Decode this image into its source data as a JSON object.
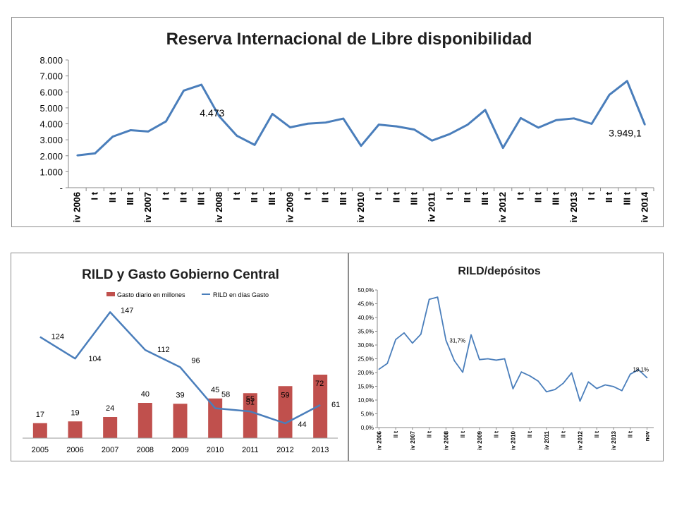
{
  "chart_data": [
    {
      "type": "line",
      "title": "Reserva Internacional de Libre disponibilidad",
      "xlabel": "",
      "ylabel": "",
      "ylim": [
        0,
        8000
      ],
      "yticks": [
        "-",
        "1.000",
        "2.000",
        "3.000",
        "4.000",
        "5.000",
        "6.000",
        "7.000",
        "8.000"
      ],
      "categories": [
        "iv 2006",
        "I t",
        "II t",
        "III t",
        "iv 2007",
        "I t",
        "II t",
        "III t",
        "iv 2008",
        "I t",
        "II t",
        "III t",
        "iv 2009",
        "I t",
        "II t",
        "III t",
        "iv 2010",
        "I t",
        "II t",
        "III t",
        "iv 2011",
        "I t",
        "II t",
        "III t",
        "iv 2012",
        "I t",
        "II t",
        "III t",
        "iv 2013",
        "I t",
        "II t",
        "III t",
        "iv 2014"
      ],
      "series": [
        {
          "color": "#4a7ebb",
          "values": [
            2020,
            2150,
            3200,
            3600,
            3520,
            4150,
            6080,
            6450,
            4473,
            3250,
            2680,
            4620,
            3780,
            4010,
            4080,
            4330,
            2620,
            3950,
            3840,
            3640,
            2950,
            3360,
            3940,
            4870,
            2490,
            4360,
            3760,
            4230,
            4340,
            4000,
            5820,
            6680,
            3949.1
          ]
        }
      ],
      "annotations": [
        {
          "label": "4.473",
          "index": 8
        },
        {
          "label": "3.949,1",
          "index": 32
        }
      ],
      "grid": false,
      "legend": "none"
    },
    {
      "type": "bar",
      "title": "RILD y Gasto Gobierno Central",
      "xlabel": "",
      "ylabel": "",
      "categories": [
        "2005",
        "2006",
        "2007",
        "2008",
        "2009",
        "2010",
        "2011",
        "2012",
        "2013"
      ],
      "series": [
        {
          "name": "Gasto diario en millones",
          "kind": "bar",
          "color": "#c0504d",
          "values": [
            17,
            19,
            24,
            40,
            39,
            45,
            51,
            59,
            72
          ]
        },
        {
          "name": "RILD en días Gasto",
          "kind": "line",
          "color": "#4a7ebb",
          "values": [
            124,
            104,
            147,
            112,
            96,
            58,
            55,
            44,
            61
          ]
        }
      ],
      "legend": "top",
      "grid": false
    },
    {
      "type": "line",
      "title": "RILD/depósitos",
      "xlabel": "",
      "ylabel": "",
      "ylim": [
        0,
        50
      ],
      "yticks": [
        "0,0%",
        "5,0%",
        "10,0%",
        "15,0%",
        "20,0%",
        "25,0%",
        "30,0%",
        "35,0%",
        "40,0%",
        "45,0%",
        "50,0%"
      ],
      "xticks": [
        {
          "label": "iv 2006",
          "index": 0
        },
        {
          "label": "II t",
          "index": 2
        },
        {
          "label": "iv 2007",
          "index": 4
        },
        {
          "label": "II t",
          "index": 6
        },
        {
          "label": "iv 2008",
          "index": 8
        },
        {
          "label": "II t",
          "index": 10
        },
        {
          "label": "iv 2009",
          "index": 12
        },
        {
          "label": "II t",
          "index": 14
        },
        {
          "label": "iv 2010",
          "index": 16
        },
        {
          "label": "II t",
          "index": 18
        },
        {
          "label": "iv 2011",
          "index": 20
        },
        {
          "label": "II t",
          "index": 22
        },
        {
          "label": "iv 2012",
          "index": 24
        },
        {
          "label": "II t",
          "index": 26
        },
        {
          "label": "iv 2013",
          "index": 28
        },
        {
          "label": "II t",
          "index": 30
        },
        {
          "label": "nov",
          "index": 32
        }
      ],
      "series": [
        {
          "color": "#4a7ebb",
          "values": [
            21.2,
            23.3,
            32.0,
            34.4,
            30.7,
            33.9,
            46.6,
            47.4,
            31.7,
            24.3,
            20.1,
            33.7,
            24.7,
            25.0,
            24.5,
            25.0,
            14.1,
            20.2,
            18.8,
            16.9,
            13.0,
            13.8,
            16.1,
            19.9,
            9.6,
            16.6,
            14.2,
            15.5,
            14.9,
            13.4,
            19.4,
            21.0,
            18.1
          ]
        }
      ],
      "annotations": [
        {
          "label": "31,7%",
          "index": 8
        },
        {
          "label": "18,1%",
          "index": 32
        }
      ],
      "grid": false,
      "legend": "none"
    }
  ]
}
